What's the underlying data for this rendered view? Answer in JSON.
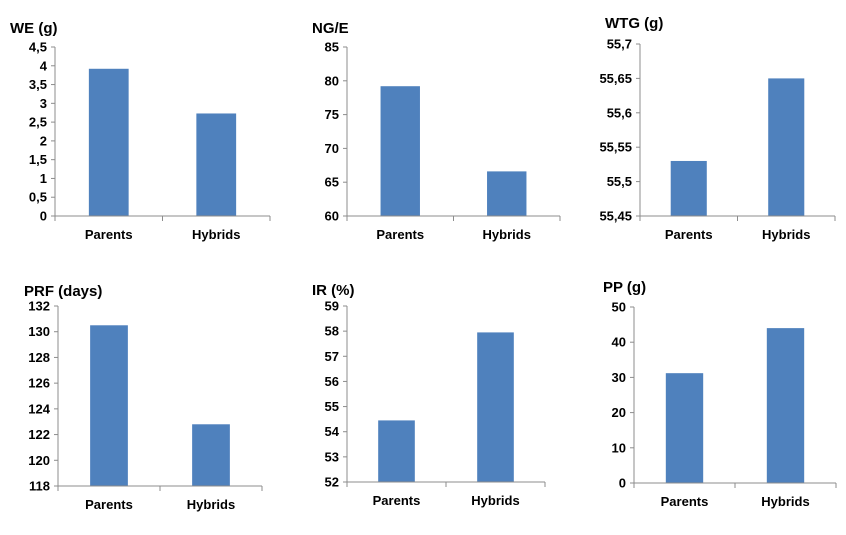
{
  "colors": {
    "bar": "#4f81bd",
    "axis": "#8c8c8c",
    "text": "#000000"
  },
  "chart_data": [
    {
      "type": "bar",
      "title": "WE (g)",
      "categories": [
        "Parents",
        "Hybrids"
      ],
      "values": [
        3.92,
        2.73
      ],
      "ylim": [
        0,
        4.5
      ],
      "yticks": [
        "0",
        "0,5",
        "1",
        "1,5",
        "2",
        "2,5",
        "3",
        "3,5",
        "4",
        "4,5"
      ],
      "xlabel": "",
      "ylabel": "",
      "grid": false,
      "legend": "none"
    },
    {
      "type": "bar",
      "title": "NG/E",
      "categories": [
        "Parents",
        "Hybrids"
      ],
      "values": [
        79.2,
        66.6
      ],
      "ylim": [
        60,
        85
      ],
      "yticks": [
        "60",
        "65",
        "70",
        "75",
        "80",
        "85"
      ],
      "xlabel": "",
      "ylabel": "",
      "grid": false,
      "legend": "none"
    },
    {
      "type": "bar",
      "title": "WTG (g)",
      "categories": [
        "Parents",
        "Hybrids"
      ],
      "values": [
        55.53,
        55.65
      ],
      "ylim": [
        55.45,
        55.7
      ],
      "yticks": [
        "55,45",
        "55,5",
        "55,55",
        "55,6",
        "55,65",
        "55,7"
      ],
      "xlabel": "",
      "ylabel": "",
      "grid": false,
      "legend": "none"
    },
    {
      "type": "bar",
      "title": "PRF (days)",
      "categories": [
        "Parents",
        "Hybrids"
      ],
      "values": [
        130.5,
        122.8
      ],
      "ylim": [
        118,
        132
      ],
      "yticks": [
        "118",
        "120",
        "122",
        "124",
        "126",
        "128",
        "130",
        "132"
      ],
      "xlabel": "",
      "ylabel": "",
      "grid": false,
      "legend": "none"
    },
    {
      "type": "bar",
      "title": "IR (%)",
      "categories": [
        "Parents",
        "Hybrids"
      ],
      "values": [
        54.45,
        57.95
      ],
      "ylim": [
        52,
        59
      ],
      "yticks": [
        "52",
        "53",
        "54",
        "55",
        "56",
        "57",
        "58",
        "59"
      ],
      "xlabel": "",
      "ylabel": "",
      "grid": false,
      "legend": "none"
    },
    {
      "type": "bar",
      "title": "PP (g)",
      "categories": [
        "Parents",
        "Hybrids"
      ],
      "values": [
        31.2,
        44.0
      ],
      "ylim": [
        0,
        50
      ],
      "yticks": [
        "0",
        "10",
        "20",
        "30",
        "40",
        "50"
      ],
      "xlabel": "",
      "ylabel": "",
      "grid": false,
      "legend": "none"
    }
  ]
}
